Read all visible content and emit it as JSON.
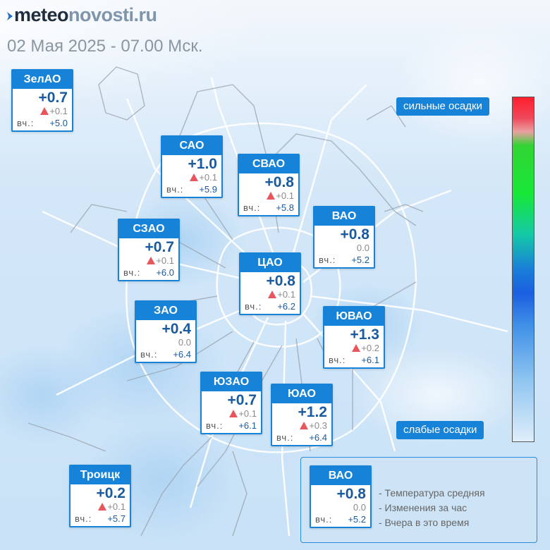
{
  "header": {
    "brand_part1": "meteo",
    "brand_part2": "novosti.ru",
    "datetime": "02 Мая 2025 - 07.00 Мск."
  },
  "districts": [
    {
      "name": "ЗелАО",
      "temp": "+0.7",
      "change": "+0.1",
      "rising": true,
      "yesterday_label": "вч.:",
      "yesterday": "+5.0"
    },
    {
      "name": "САО",
      "temp": "+1.0",
      "change": "+0.1",
      "rising": true,
      "yesterday_label": "вч.:",
      "yesterday": "+5.9"
    },
    {
      "name": "СВАО",
      "temp": "+0.8",
      "change": "+0.1",
      "rising": true,
      "yesterday_label": "вч.:",
      "yesterday": "+5.8"
    },
    {
      "name": "ВАО",
      "temp": "+0.8",
      "change": "0.0",
      "rising": false,
      "yesterday_label": "вч.:",
      "yesterday": "+5.2"
    },
    {
      "name": "СЗАО",
      "temp": "+0.7",
      "change": "+0.1",
      "rising": true,
      "yesterday_label": "вч.:",
      "yesterday": "+6.0"
    },
    {
      "name": "ЦАО",
      "temp": "+0.8",
      "change": "+0.1",
      "rising": true,
      "yesterday_label": "вч.:",
      "yesterday": "+6.2"
    },
    {
      "name": "ЗАО",
      "temp": "+0.4",
      "change": "0.0",
      "rising": false,
      "yesterday_label": "вч.:",
      "yesterday": "+6.4"
    },
    {
      "name": "ЮВАО",
      "temp": "+1.3",
      "change": "+0.2",
      "rising": true,
      "yesterday_label": "вч.:",
      "yesterday": "+6.1"
    },
    {
      "name": "ЮЗАО",
      "temp": "+0.7",
      "change": "+0.1",
      "rising": true,
      "yesterday_label": "вч.:",
      "yesterday": "+6.1"
    },
    {
      "name": "ЮАО",
      "temp": "+1.2",
      "change": "+0.3",
      "rising": true,
      "yesterday_label": "вч.:",
      "yesterday": "+6.4"
    },
    {
      "name": "Троицк",
      "temp": "+0.2",
      "change": "+0.1",
      "rising": true,
      "yesterday_label": "вч.:",
      "yesterday": "+5.7"
    }
  ],
  "precip_scale": {
    "top_label": "сильные осадки",
    "bottom_label": "слабые осадки",
    "colors": [
      "#ff1f2e",
      "#e9a0a0",
      "#18e838",
      "#14c8a8",
      "#1a7ed8",
      "#3e8fe8",
      "#dfeefa"
    ]
  },
  "legend": {
    "sample": {
      "name": "ВАО",
      "temp": "+0.8",
      "change": "0.0",
      "rising": false,
      "yesterday_label": "вч.:",
      "yesterday": "+5.2"
    },
    "items": [
      "- Температура средняя",
      "- Изменения за час",
      "- Вчера в это время"
    ]
  },
  "colors": {
    "accent": "#1683d8",
    "temp_text": "#1a5a9e",
    "rise_marker": "#e8565d"
  }
}
